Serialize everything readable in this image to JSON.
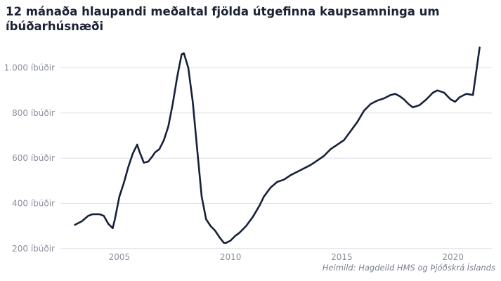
{
  "title": "12 mánaða hlaupandi meðaltal fjölda útgefinna kaupsamninga um íbúðarhúsnæði",
  "source": "Heimild: Hagdeild HMS og Þjóðskrá Íslands",
  "colors": {
    "line": "#16213a",
    "grid": "#dcdfe4",
    "tick_text": "#8b909c"
  },
  "chart_data": {
    "type": "line",
    "title": "12 mánaða hlaupandi meðaltal fjölda útgefinna kaupsamninga um íbúðarhúsnæði",
    "xlabel": "",
    "ylabel": "",
    "xlim": [
      2002.35,
      2021.75
    ],
    "ylim": [
      190,
      1120
    ],
    "yticks": [
      200,
      400,
      600,
      800,
      1000
    ],
    "ytick_labels": [
      "200 íbúðir",
      "400 íbúðir",
      "600 íbúðir",
      "800 íbúðir",
      "1.000 íbúðir"
    ],
    "xticks": [
      2005,
      2010,
      2015,
      2020
    ],
    "xtick_labels": [
      "2005",
      "2010",
      "2015",
      "2020"
    ],
    "grid": "horizontal",
    "legend": "none",
    "series": [
      {
        "x": [
          2003.0,
          2003.3,
          2003.6,
          2003.8,
          2004.1,
          2004.3,
          2004.5,
          2004.7,
          2004.8,
          2005.0,
          2005.2,
          2005.4,
          2005.6,
          2005.8,
          2005.9,
          2006.1,
          2006.3,
          2006.5,
          2006.6,
          2006.8,
          2007.0,
          2007.2,
          2007.4,
          2007.6,
          2007.8,
          2007.9,
          2008.1,
          2008.3,
          2008.5,
          2008.7,
          2008.9,
          2009.1,
          2009.3,
          2009.5,
          2009.7,
          2009.8,
          2010.0,
          2010.2,
          2010.4,
          2010.7,
          2011.0,
          2011.3,
          2011.5,
          2011.8,
          2012.1,
          2012.4,
          2012.7,
          2013.0,
          2013.3,
          2013.6,
          2013.9,
          2014.2,
          2014.5,
          2014.8,
          2015.1,
          2015.4,
          2015.7,
          2016.0,
          2016.3,
          2016.6,
          2016.9,
          2017.2,
          2017.4,
          2017.6,
          2017.8,
          2018.0,
          2018.2,
          2018.5,
          2018.8,
          2019.1,
          2019.3,
          2019.6,
          2019.9,
          2020.1,
          2020.3,
          2020.6,
          2020.9,
          2021.2
        ],
        "y": [
          305,
          320,
          345,
          352,
          352,
          345,
          310,
          290,
          330,
          430,
          490,
          560,
          620,
          660,
          630,
          580,
          585,
          610,
          625,
          640,
          680,
          740,
          840,
          960,
          1060,
          1065,
          1000,
          850,
          640,
          430,
          330,
          300,
          280,
          250,
          225,
          225,
          235,
          255,
          270,
          300,
          340,
          390,
          430,
          470,
          495,
          505,
          525,
          540,
          555,
          570,
          590,
          610,
          640,
          660,
          680,
          720,
          760,
          810,
          840,
          855,
          865,
          880,
          885,
          875,
          860,
          840,
          825,
          835,
          860,
          890,
          900,
          890,
          860,
          850,
          870,
          885,
          880,
          1090
        ]
      }
    ]
  }
}
